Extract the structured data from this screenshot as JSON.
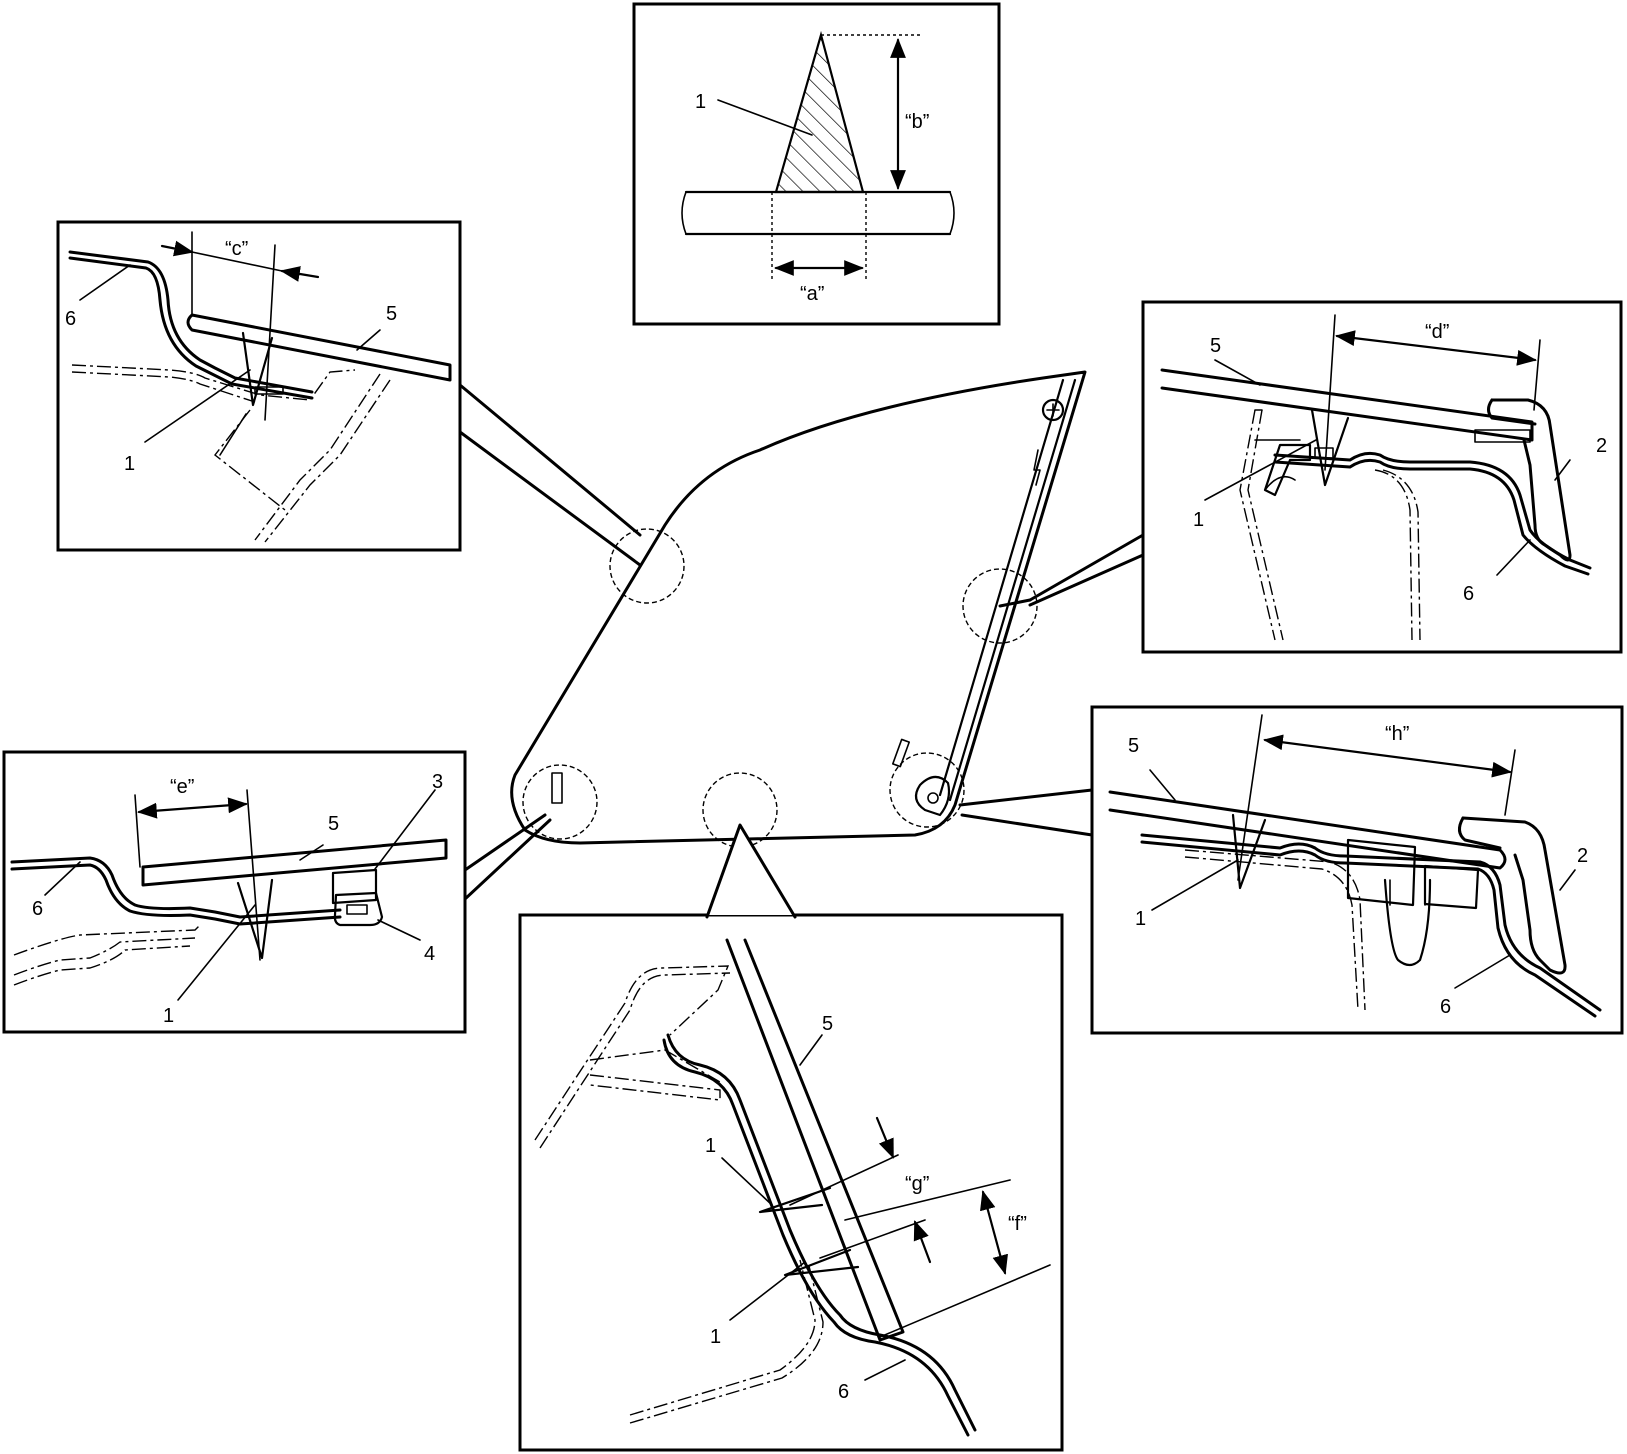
{
  "labels": {
    "a": "“a”",
    "b": "“b”",
    "c": "“c”",
    "d": "“d”",
    "e": "“e”",
    "f": "“f”",
    "g": "“g”",
    "h": "“h”"
  },
  "parts": {
    "p1": "1",
    "p2": "2",
    "p3": "3",
    "p4": "4",
    "p5": "5",
    "p6": "6"
  }
}
